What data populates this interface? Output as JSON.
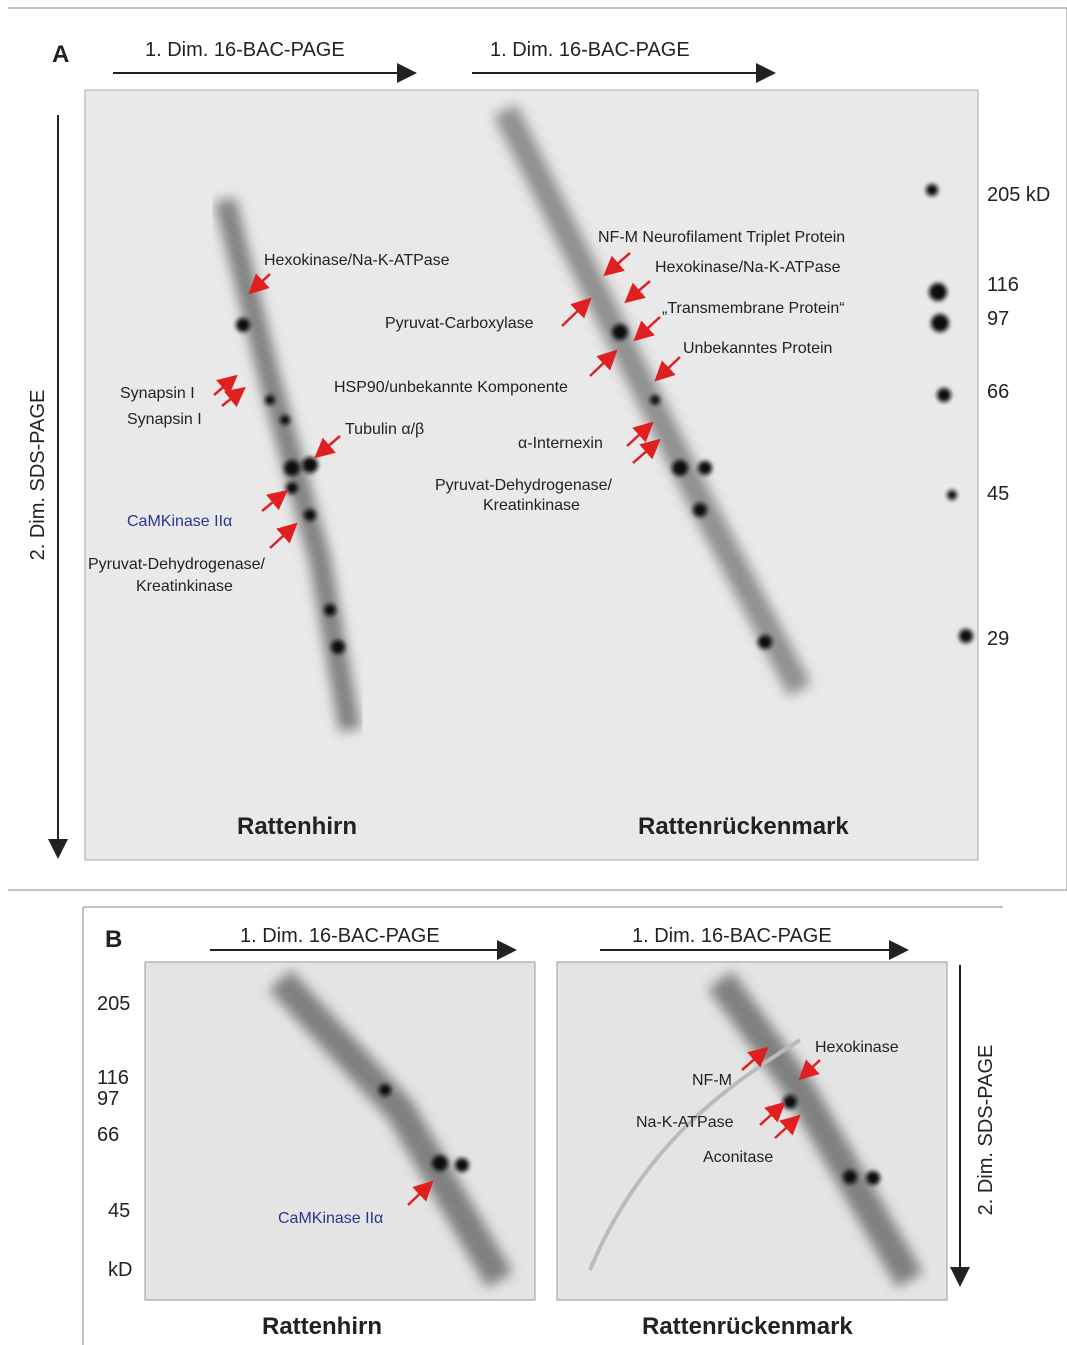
{
  "panel_a": {
    "label": "A",
    "dim1_left": "1. Dim. 16-BAC-PAGE",
    "dim1_right": "1. Dim. 16-BAC-PAGE",
    "dim2": "2. Dim. SDS-PAGE",
    "markers": [
      "205 kD",
      "116",
      "97",
      "66",
      "45",
      "29"
    ],
    "gel_left": {
      "title": "Rattenhirn",
      "annotations": [
        "Hexokinase/Na-K-ATPase",
        "Synapsin I",
        "Synapsin I",
        "Tubulin α/β",
        "CaMKinase IIα",
        "Pyruvat-Dehydrogenase/",
        "Kreatinkinase"
      ]
    },
    "gel_right": {
      "title": "Rattenrückenmark",
      "annotations": [
        "NF-M Neurofilament Triplet Protein",
        "Hexokinase/Na-K-ATPase",
        "„Transmembrane Protein“",
        "Pyruvat-Carboxylase",
        "Unbekanntes Protein",
        "HSP90/unbekannte Komponente",
        "α-Internexin",
        "Pyruvat-Dehydrogenase/",
        "Kreatinkinase"
      ]
    }
  },
  "panel_b": {
    "label": "B",
    "dim1_left": "1. Dim. 16-BAC-PAGE",
    "dim1_right": "1. Dim. 16-BAC-PAGE",
    "dim2": "2. Dim. SDS-PAGE",
    "markers": [
      "205",
      "116",
      "97",
      "66",
      "45",
      "kD"
    ],
    "gel_left": {
      "title": "Rattenhirn",
      "annotations": [
        "CaMKinase IIα"
      ]
    },
    "gel_right": {
      "title": "Rattenrückenmark",
      "annotations": [
        "Hexokinase",
        "NF-M",
        "Na-K-ATPase",
        "Aconitase"
      ]
    }
  }
}
